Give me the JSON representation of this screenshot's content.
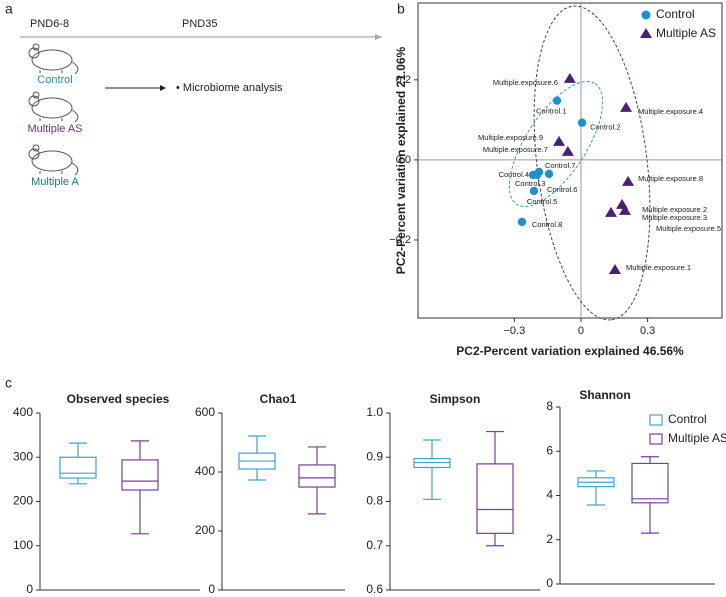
{
  "panel_labels": [
    "a",
    "b",
    "c"
  ],
  "diagram": {
    "timeline": [
      "PND6-8",
      "PND35"
    ],
    "groups": [
      "Control",
      "Multiple AS",
      "Multiple A"
    ],
    "output": "• Microbiome analysis"
  },
  "chart_data": [
    {
      "type": "scatter",
      "xlabel": "PC2-Percent variation explained 46.56%",
      "ylabel": "PC2-Percent variation explained 21.06%",
      "xlim": [
        -0.734,
        0.635
      ],
      "ylim": [
        -0.395,
        0.392
      ],
      "xticks": [
        {
          "value": -0.3,
          "label": "−0.3"
        },
        0,
        0.3
      ],
      "yticks": [
        0.2,
        {
          "value": 0,
          "label": "0.0"
        },
        {
          "value": -0.2,
          "label": "−0.2"
        }
      ],
      "zero_lines": true,
      "legend": "upper right",
      "series": [
        {
          "name": "Control",
          "color": "#1f8fd0",
          "marker": "circle",
          "labels": [
            "Control.1",
            "Control.2",
            "Control.3",
            "Control.4",
            "Control.5",
            "Control.6",
            "Control.7",
            "Control.8"
          ],
          "x": [
            -0.108,
            0.005,
            -0.198,
            -0.216,
            -0.212,
            -0.144,
            -0.189,
            -0.266
          ],
          "y": [
            0.148,
            0.093,
            -0.0375,
            -0.0375,
            -0.0775,
            -0.035,
            -0.03,
            -0.155
          ]
        },
        {
          "name": "Multiple AS",
          "color": "#4b1f74",
          "marker": "triangle",
          "labels": [
            "Multiple.exposure.1",
            "Multiple.exposure.2",
            "Multiple.exposure.3",
            "Multiple.exposure.4",
            "Multiple.exposure.5",
            "Multiple.exposure.6",
            "Multiple.exposure.7",
            "Multiple.exposure.8",
            "Multiple.exposure.9"
          ],
          "x": [
            0.153,
            0.185,
            0.198,
            0.203,
            0.135,
            -0.05,
            -0.059,
            0.212,
            -0.099
          ],
          "y": [
            -0.275,
            -0.1125,
            -0.1275,
            0.13,
            -0.1325,
            0.2025,
            0.02,
            -0.055,
            0.045
          ]
        }
      ]
    },
    {
      "type": "box",
      "title": "Observed species",
      "ylim": [
        0,
        400
      ],
      "yticks": [
        0,
        100,
        200,
        300,
        400
      ],
      "series": [
        {
          "color": "#3aa3d8",
          "min": 240,
          "q1": 253,
          "median": 264,
          "q3": 300,
          "max": 332
        },
        {
          "color": "#7b3f9e",
          "min": 127,
          "q1": 226,
          "median": 246,
          "q3": 294,
          "max": 337
        }
      ]
    },
    {
      "type": "box",
      "title": "Chao1",
      "ylim": [
        0,
        600
      ],
      "yticks": [
        0,
        200,
        400,
        600
      ],
      "series": [
        {
          "color": "#3aa3d8",
          "min": 373,
          "q1": 410,
          "median": 437,
          "q3": 464,
          "max": 522
        },
        {
          "color": "#7b3f9e",
          "min": 258,
          "q1": 349,
          "median": 380,
          "q3": 424,
          "max": 485
        }
      ]
    },
    {
      "type": "box",
      "title": "Simpson",
      "ylim": [
        0.6,
        1.0
      ],
      "yticks": [
        0.6,
        0.7,
        0.8,
        0.9,
        {
          "value": 1.0,
          "label": "1.0"
        }
      ],
      "series": [
        {
          "color": "#3aa3d8",
          "min": 0.805,
          "q1": 0.877,
          "median": 0.888,
          "q3": 0.897,
          "max": 0.939
        },
        {
          "color": "#7b3f9e",
          "min": 0.7,
          "q1": 0.728,
          "median": 0.782,
          "q3": 0.885,
          "max": 0.958
        }
      ]
    },
    {
      "type": "box",
      "title": "Shannon",
      "ylim": [
        0,
        8
      ],
      "yticks": [
        0,
        2,
        4,
        6,
        8
      ],
      "legend": "upper right",
      "series": [
        {
          "name": "Control",
          "color": "#3aa3d8",
          "min": 3.57,
          "q1": 4.4,
          "median": 4.6,
          "q3": 4.8,
          "max": 5.11
        },
        {
          "name": "Multiple AS",
          "color": "#7b3f9e",
          "min": 2.3,
          "q1": 3.67,
          "median": 3.85,
          "q3": 5.45,
          "max": 5.75
        }
      ]
    }
  ]
}
